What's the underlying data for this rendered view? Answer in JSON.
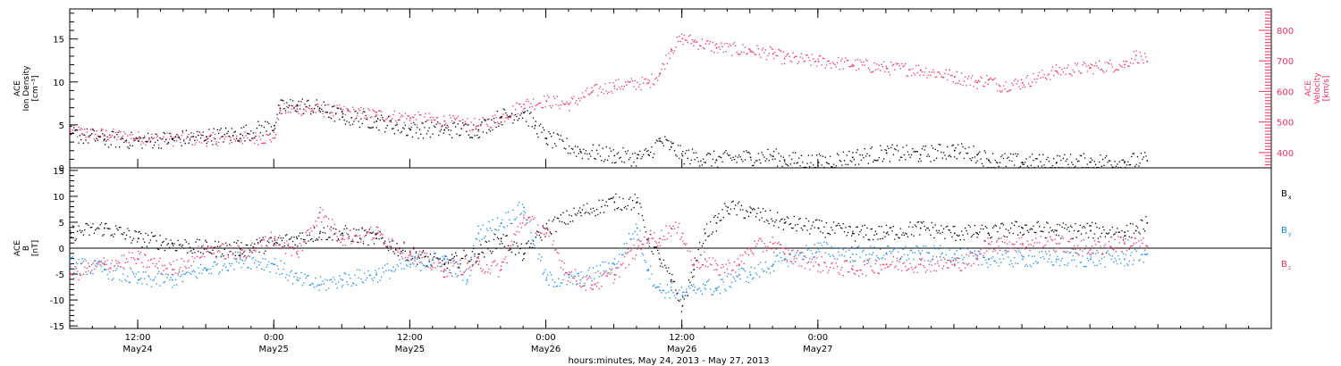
{
  "chart_data": [
    {
      "type": "scatter",
      "panel": "top",
      "ylabel_left": [
        "ACE",
        "Ion Density",
        "[cm⁻³]"
      ],
      "ylabel_right": [
        "ACE",
        "Velocity",
        "[km/s]"
      ],
      "y_left_ticks": [
        "0",
        "5",
        "10",
        "15"
      ],
      "y_left_range": [
        0,
        18.5
      ],
      "y_right_ticks": [
        "400",
        "500",
        "600",
        "700",
        "800"
      ],
      "y_right_range": [
        350,
        870
      ],
      "colors": {
        "density": "#000000",
        "velocity": "#e8335e"
      },
      "series": [
        {
          "key": "density",
          "points": [
            [
              0,
              4
            ],
            [
              3,
              3.4
            ],
            [
              6,
              3.2
            ],
            [
              9,
              3.4
            ],
            [
              12,
              3.7
            ],
            [
              15,
              4
            ],
            [
              18,
              5
            ],
            [
              18.5,
              7
            ],
            [
              20,
              7.4
            ],
            [
              22,
              7
            ],
            [
              24,
              6
            ],
            [
              27,
              5.5
            ],
            [
              30,
              4.5
            ],
            [
              33,
              4.5
            ],
            [
              36,
              4.5
            ],
            [
              38,
              6
            ],
            [
              40,
              6.5
            ],
            [
              41,
              5
            ],
            [
              42,
              3.5
            ],
            [
              45,
              2
            ],
            [
              48,
              1.5
            ],
            [
              50,
              1.2
            ],
            [
              51,
              1.6
            ],
            [
              52,
              3.2
            ],
            [
              53,
              2.5
            ],
            [
              54,
              1.5
            ],
            [
              57,
              1
            ],
            [
              60,
              1.3
            ],
            [
              62,
              1.4
            ],
            [
              63,
              1
            ],
            [
              66,
              0.7
            ],
            [
              69,
              1.3
            ],
            [
              72,
              1.8
            ],
            [
              75,
              1.6
            ],
            [
              78,
              2.1
            ],
            [
              80,
              1.6
            ],
            [
              81,
              1
            ],
            [
              84,
              0.7
            ],
            [
              87,
              0.7
            ],
            [
              90,
              0.75
            ],
            [
              93,
              0.8
            ],
            [
              95,
              0.9
            ]
          ]
        },
        {
          "key": "velocity",
          "points": [
            [
              0,
              470
            ],
            [
              3,
              460
            ],
            [
              6,
              450
            ],
            [
              9,
              445
            ],
            [
              12,
              445
            ],
            [
              15,
              448
            ],
            [
              18,
              450
            ],
            [
              18.5,
              540
            ],
            [
              20,
              545
            ],
            [
              24,
              535
            ],
            [
              27,
              525
            ],
            [
              30,
              515
            ],
            [
              33,
              505
            ],
            [
              36,
              490
            ],
            [
              38,
              515
            ],
            [
              40,
              560
            ],
            [
              42,
              570
            ],
            [
              44,
              560
            ],
            [
              46,
              600
            ],
            [
              48,
              620
            ],
            [
              51,
              630
            ],
            [
              52,
              660
            ],
            [
              53,
              740
            ],
            [
              54,
              775
            ],
            [
              55,
              765
            ],
            [
              57,
              745
            ],
            [
              60,
              735
            ],
            [
              62,
              725
            ],
            [
              63,
              710
            ],
            [
              66,
              700
            ],
            [
              69,
              690
            ],
            [
              72,
              678
            ],
            [
              75,
              672
            ],
            [
              78,
              650
            ],
            [
              80,
              632
            ],
            [
              81,
              640
            ],
            [
              82,
              620
            ],
            [
              84,
              630
            ],
            [
              87,
              668
            ],
            [
              90,
              680
            ],
            [
              93,
              690
            ],
            [
              94,
              720
            ],
            [
              95,
              700
            ]
          ]
        }
      ]
    },
    {
      "type": "scatter",
      "panel": "bottom",
      "ylabel_left": [
        "ACE",
        "B",
        "[nT]"
      ],
      "y_ticks": [
        "-15",
        "-10",
        "-5",
        "0",
        "5",
        "10",
        "15"
      ],
      "y_range": [
        -15.5,
        15.5
      ],
      "x_ticks": [
        {
          "time": "12:00",
          "day": "May24"
        },
        {
          "time": "0:00",
          "day": "May25"
        },
        {
          "time": "12:00",
          "day": "May25"
        },
        {
          "time": "0:00",
          "day": "May26"
        },
        {
          "time": "12:00",
          "day": "May26"
        },
        {
          "time": "0:00",
          "day": "May27"
        }
      ],
      "x_range_hours": [
        0,
        106
      ],
      "xlabel": "hours:minutes, May 24, 2013 - May 27, 2013",
      "legend": [
        {
          "label": "B",
          "sub": "x",
          "color": "#000000"
        },
        {
          "label": "B",
          "sub": "y",
          "color": "#1e88e5"
        },
        {
          "label": "B",
          "sub": "z",
          "color": "#e8335e"
        }
      ],
      "series": [
        {
          "key": "Bx",
          "color": "#000000",
          "points": [
            [
              0,
              3
            ],
            [
              3,
              4
            ],
            [
              6,
              2
            ],
            [
              9,
              1
            ],
            [
              12,
              0
            ],
            [
              15,
              0
            ],
            [
              18,
              1
            ],
            [
              20,
              2
            ],
            [
              22,
              3
            ],
            [
              24,
              3
            ],
            [
              27,
              2
            ],
            [
              30,
              -1
            ],
            [
              33,
              -3
            ],
            [
              36,
              -1
            ],
            [
              38,
              2
            ],
            [
              40,
              -1
            ],
            [
              42,
              4
            ],
            [
              45,
              7
            ],
            [
              48,
              9
            ],
            [
              50,
              9
            ],
            [
              51,
              2
            ],
            [
              52,
              -2
            ],
            [
              53,
              -6
            ],
            [
              54,
              -11
            ],
            [
              55,
              -4
            ],
            [
              56,
              3
            ],
            [
              57,
              5
            ],
            [
              58,
              8
            ],
            [
              60,
              7
            ],
            [
              63,
              5
            ],
            [
              66,
              4
            ],
            [
              69,
              3
            ],
            [
              72,
              3
            ],
            [
              75,
              4
            ],
            [
              78,
              3
            ],
            [
              80,
              3
            ],
            [
              81,
              3
            ],
            [
              84,
              4
            ],
            [
              87,
              3.5
            ],
            [
              90,
              3.5
            ],
            [
              93,
              3.2
            ],
            [
              94,
              3.5
            ],
            [
              95,
              5
            ]
          ]
        },
        {
          "key": "By",
          "color": "#1e88e5",
          "points": [
            [
              0,
              -3
            ],
            [
              3,
              -4
            ],
            [
              6,
              -6
            ],
            [
              9,
              -6
            ],
            [
              12,
              -4
            ],
            [
              15,
              -2
            ],
            [
              18,
              -3
            ],
            [
              20,
              -6
            ],
            [
              22,
              -7
            ],
            [
              24,
              -6
            ],
            [
              27,
              -5
            ],
            [
              30,
              -3
            ],
            [
              33,
              -2
            ],
            [
              35,
              -6
            ],
            [
              36,
              3
            ],
            [
              38,
              5
            ],
            [
              40,
              8
            ],
            [
              42,
              -6
            ],
            [
              45,
              -6
            ],
            [
              48,
              -3
            ],
            [
              50,
              4
            ],
            [
              51,
              -4
            ],
            [
              52,
              -8
            ],
            [
              53,
              -8
            ],
            [
              54,
              -9
            ],
            [
              55,
              -8
            ],
            [
              56,
              -7
            ],
            [
              57,
              -8
            ],
            [
              59,
              -5
            ],
            [
              60,
              -5
            ],
            [
              62,
              -3
            ],
            [
              63,
              -2
            ],
            [
              66,
              0
            ],
            [
              69,
              -1
            ],
            [
              72,
              -1
            ],
            [
              75,
              -1
            ],
            [
              78,
              -1
            ],
            [
              80,
              -2
            ],
            [
              81,
              -2
            ],
            [
              84,
              -2
            ],
            [
              87,
              -2
            ],
            [
              90,
              -2
            ],
            [
              93,
              -2
            ],
            [
              95,
              -1
            ]
          ]
        },
        {
          "key": "Bz",
          "color": "#e8335e",
          "points": [
            [
              0,
              -5
            ],
            [
              3,
              -3
            ],
            [
              6,
              -2
            ],
            [
              9,
              -4
            ],
            [
              12,
              0
            ],
            [
              15,
              -1
            ],
            [
              18,
              2
            ],
            [
              20,
              -1
            ],
            [
              22,
              7
            ],
            [
              24,
              2
            ],
            [
              27,
              3
            ],
            [
              30,
              -1
            ],
            [
              33,
              -4
            ],
            [
              36,
              -3
            ],
            [
              38,
              -4
            ],
            [
              40,
              6
            ],
            [
              42,
              3
            ],
            [
              44,
              -5
            ],
            [
              46,
              -7
            ],
            [
              48,
              -5
            ],
            [
              50,
              0
            ],
            [
              51,
              2
            ],
            [
              52,
              2
            ],
            [
              53,
              4
            ],
            [
              54,
              3
            ],
            [
              55,
              -3
            ],
            [
              56,
              -2
            ],
            [
              57,
              -4
            ],
            [
              59,
              -3
            ],
            [
              60,
              0
            ],
            [
              62,
              1
            ],
            [
              63,
              -1
            ],
            [
              66,
              -3
            ],
            [
              69,
              -4
            ],
            [
              72,
              -3
            ],
            [
              75,
              -3
            ],
            [
              78,
              -3
            ],
            [
              80,
              -2
            ],
            [
              81,
              1
            ],
            [
              84,
              1
            ],
            [
              87,
              1
            ],
            [
              90,
              0
            ],
            [
              93,
              1
            ],
            [
              95,
              0.5
            ]
          ]
        }
      ]
    }
  ]
}
